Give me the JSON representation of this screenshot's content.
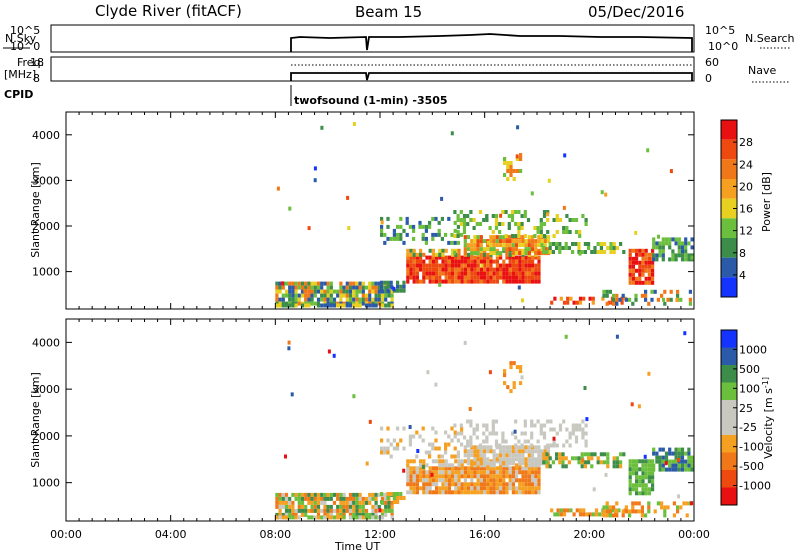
{
  "header": {
    "station": "Clyde River (fitACF)",
    "beam": "Beam 15",
    "date": "05/Dec/2016"
  },
  "panels": {
    "nsky": {
      "label": "N.Sky",
      "tick_top": "10^5",
      "tick_bottom": "10^0",
      "right_label": "N.Search",
      "right_tick_top": "10^5",
      "right_tick_bottom": "10^0"
    },
    "freq": {
      "label_line1": "Freq.",
      "label_line2": "[MHz]",
      "tick_top": "18",
      "tick_bottom": "8",
      "right_label": "Nave",
      "right_tick_top": "60",
      "right_tick_bottom": "0"
    },
    "cpid": {
      "label": "CPID",
      "program": "twofsound (1-min) -3505"
    }
  },
  "colors": {
    "power_scale": [
      "#1433ff",
      "#2b5aa8",
      "#3c8c4a",
      "#6cbf3c",
      "#e8d020",
      "#f5a020",
      "#f07818",
      "#ee4a10",
      "#e81010"
    ],
    "velocity_scale": [
      "#e81010",
      "#ee4a10",
      "#f07818",
      "#f5a020",
      "#c8c8c0",
      "#c8c8c0",
      "#6cbf3c",
      "#3c8c4a",
      "#2b5aa8",
      "#1433ff"
    ]
  },
  "chart_data": [
    {
      "type": "heatmap",
      "title": "",
      "xlabel": "",
      "ylabel": "Slant Range [km]",
      "xlim": [
        "00:00",
        "00:00"
      ],
      "ylim": [
        180,
        4500
      ],
      "yticks": [
        "1000",
        "2000",
        "3000",
        "4000"
      ],
      "colorbar": {
        "label": "Power [dB]",
        "ticks": [
          "4",
          "8",
          "12",
          "16",
          "20",
          "24",
          "28"
        ],
        "range": [
          0,
          30
        ]
      },
      "data_coverage": "08:00-00:00 UT",
      "features": [
        {
          "time": "08:00-12:30",
          "range_km": [
            250,
            800
          ],
          "power_db": "4-20"
        },
        {
          "time": "13:00-18:00",
          "range_km": [
            650,
            1400
          ],
          "power_db": "20-30"
        },
        {
          "time": "15:30-18:30",
          "range_km": [
            1300,
            1800
          ],
          "power_db": "12-24"
        },
        {
          "time": "21:30-22:30",
          "range_km": [
            700,
            1500
          ],
          "power_db": "24-30"
        },
        {
          "time": "22:30-00:00",
          "range_km": [
            1200,
            1700
          ],
          "power_db": "4-16"
        }
      ]
    },
    {
      "type": "heatmap",
      "title": "",
      "xlabel": "Time UT",
      "ylabel": "Slant Range [km]",
      "xticks": [
        "00:00",
        "04:00",
        "08:00",
        "12:00",
        "16:00",
        "20:00",
        "00:00"
      ],
      "yticks": [
        "1000",
        "2000",
        "3000",
        "4000"
      ],
      "ylim": [
        180,
        4500
      ],
      "colorbar": {
        "label": "Velocity [m s^-1]",
        "ticks": [
          "1000",
          "500",
          "100",
          "25",
          "-25",
          "-100",
          "-500",
          "-1000"
        ]
      },
      "data_coverage": "08:00-00:00 UT",
      "features": [
        {
          "time": "08:00-12:30",
          "range_km": [
            250,
            800
          ],
          "velocity": "-500 to 100"
        },
        {
          "time": "13:00-18:00",
          "range_km": [
            650,
            1400
          ],
          "velocity": "-100 to -25"
        },
        {
          "time": "15:00-20:00",
          "range_km": [
            1500,
            2300
          ],
          "velocity": "-25 to 25"
        },
        {
          "time": "20:30-00:00",
          "range_km": [
            1100,
            1800
          ],
          "velocity": "100 to 500"
        }
      ]
    }
  ]
}
